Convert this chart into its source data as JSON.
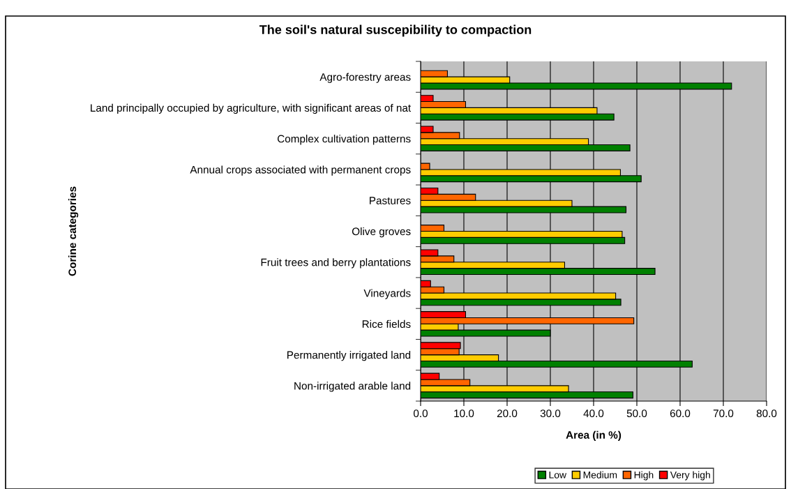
{
  "chart_data": {
    "type": "bar",
    "orientation": "horizontal",
    "title": "The soil's natural suscepibility to compaction",
    "xlabel": "Area (in %)",
    "ylabel": "Corine categories",
    "categories": [
      "Agro-forestry areas",
      "Land principally occupied by agriculture, with significant areas of nat",
      "Complex cultivation patterns",
      "Annual crops associated with permanent crops",
      "Pastures",
      "Olive groves",
      "Fruit trees and berry plantations",
      "Vineyards",
      "Rice fields",
      "Permanently irrigated land",
      "Non-irrigated arable land"
    ],
    "series": [
      {
        "name": "Low",
        "color": "#008000",
        "values": [
          71.9,
          44.7,
          48.4,
          51.0,
          47.5,
          47.2,
          54.2,
          46.3,
          30.0,
          62.8,
          49.1
        ]
      },
      {
        "name": "Medium",
        "color": "#ffcc00",
        "values": [
          20.6,
          40.8,
          38.8,
          46.2,
          35.0,
          46.6,
          33.3,
          45.1,
          8.7,
          18.0,
          34.2
        ]
      },
      {
        "name": "High",
        "color": "#ff6600",
        "values": [
          6.2,
          10.4,
          9.0,
          2.1,
          12.7,
          5.4,
          7.7,
          5.4,
          49.3,
          8.9,
          11.4
        ]
      },
      {
        "name": "Very high",
        "color": "#ff0000",
        "values": [
          null,
          2.9,
          2.9,
          null,
          4.0,
          null,
          4.0,
          2.3,
          10.4,
          9.2,
          4.3
        ]
      }
    ],
    "xlim": [
      0,
      80
    ],
    "xticks": [
      {
        "value": 0,
        "label": "0.0"
      },
      {
        "value": 10,
        "label": "10.0"
      },
      {
        "value": 20,
        "label": "20.0"
      },
      {
        "value": 30,
        "label": "30.0"
      },
      {
        "value": 40,
        "label": "40.0"
      },
      {
        "value": 50,
        "label": "50.0"
      },
      {
        "value": 60,
        "label": "60.0"
      },
      {
        "value": 70,
        "label": "70.0"
      },
      {
        "value": 80,
        "label": "80.0"
      }
    ],
    "grid": "x",
    "legend": "bottom"
  }
}
